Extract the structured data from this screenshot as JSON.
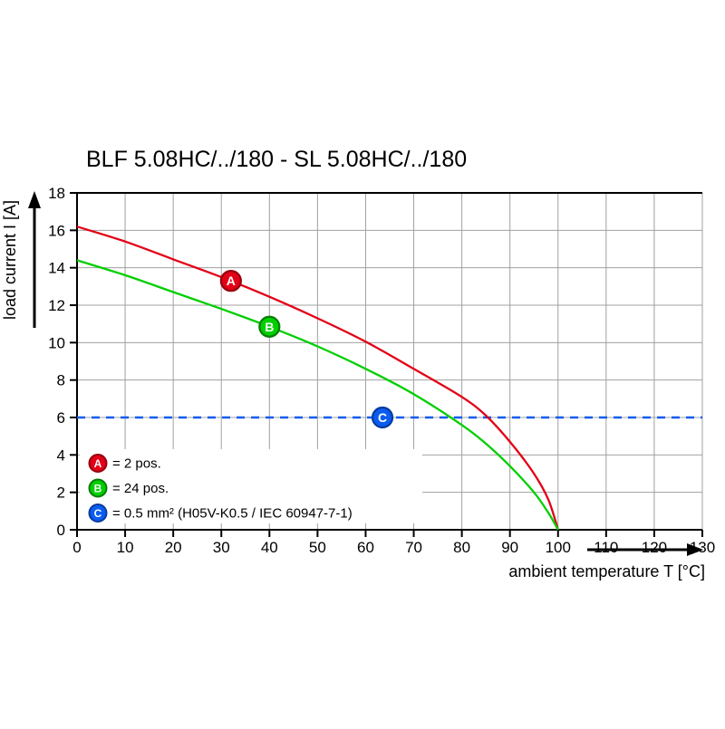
{
  "page": {
    "background": "#ffffff"
  },
  "chart_data": {
    "type": "line",
    "title": "BLF 5.08HC/../180 - SL 5.08HC/../180",
    "xlabel": "ambient temperature T [°C]",
    "ylabel": "load current I [A]",
    "xlim": [
      0,
      130
    ],
    "ylim": [
      0,
      18
    ],
    "xticks": [
      0,
      10,
      20,
      30,
      40,
      50,
      60,
      70,
      80,
      90,
      100,
      110,
      120,
      130
    ],
    "yticks": [
      0,
      2,
      4,
      6,
      8,
      10,
      12,
      14,
      16,
      18
    ],
    "grid": true,
    "grid_color": "#a0a0a0",
    "axis_color": "#000000",
    "series": [
      {
        "name": "A",
        "legend": "= 2 pos.",
        "color": "#e30016",
        "marker_ring": "#95000e",
        "marker_at": [
          32,
          13.3
        ],
        "points": [
          [
            0,
            16.2
          ],
          [
            10,
            15.4
          ],
          [
            20,
            14.45
          ],
          [
            30,
            13.5
          ],
          [
            40,
            12.45
          ],
          [
            50,
            11.3
          ],
          [
            60,
            10.05
          ],
          [
            70,
            8.6
          ],
          [
            80,
            7.1
          ],
          [
            85,
            6.1
          ],
          [
            90,
            4.7
          ],
          [
            95,
            3.0
          ],
          [
            98,
            1.6
          ],
          [
            100,
            0
          ]
        ]
      },
      {
        "name": "B",
        "legend": "= 24 pos.",
        "color": "#00cf00",
        "marker_ring": "#077d07",
        "marker_at": [
          40,
          10.85
        ],
        "points": [
          [
            0,
            14.4
          ],
          [
            10,
            13.6
          ],
          [
            20,
            12.7
          ],
          [
            30,
            11.8
          ],
          [
            40,
            10.85
          ],
          [
            50,
            9.8
          ],
          [
            60,
            8.6
          ],
          [
            70,
            7.25
          ],
          [
            80,
            5.6
          ],
          [
            85,
            4.6
          ],
          [
            90,
            3.4
          ],
          [
            95,
            2.0
          ],
          [
            98,
            0.9
          ],
          [
            100,
            0
          ]
        ]
      }
    ],
    "threshold": {
      "name": "C",
      "legend": "= 0.5 mm² (H05V-K0.5 / IEC 60947-7-1)",
      "color": "#0b5cf0",
      "marker_ring": "#083a9e",
      "y": 6,
      "line_style": "dashed",
      "marker_at": [
        63.5,
        6
      ]
    },
    "legend_position": "inside bottom-left"
  }
}
